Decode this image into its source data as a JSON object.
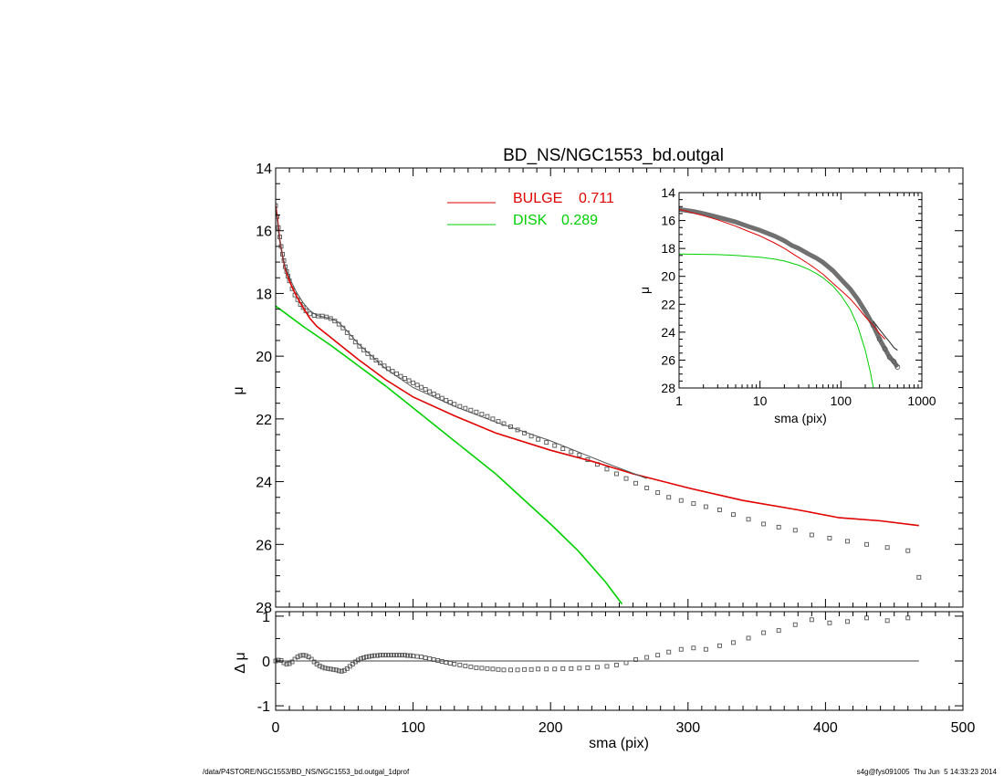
{
  "chart_data": [
    {
      "type": "line",
      "panel": "main",
      "title": "BD_NS/NGC1553_bd.outgal",
      "xlabel": "",
      "ylabel": "μ",
      "xlim": [
        0,
        500
      ],
      "ylim": [
        28,
        14
      ],
      "y_reversed": true,
      "y_ticks": [
        "14",
        "16",
        "18",
        "20",
        "22",
        "24",
        "26",
        "28"
      ],
      "legend": {
        "placement": "top-center",
        "entries": [
          {
            "label": "BULGE",
            "value": "0.711",
            "color": "#e00000"
          },
          {
            "label": "DISK",
            "value": "0.289",
            "color": "#00d000"
          }
        ]
      },
      "series": [
        {
          "name": "BULGE",
          "color": "#e00000",
          "x": [
            0,
            1,
            2,
            3,
            5,
            7,
            10,
            13,
            16,
            20,
            25,
            30,
            40,
            50,
            60,
            80,
            100,
            130,
            160,
            200,
            230,
            260,
            300,
            340,
            380,
            410,
            440,
            468
          ],
          "y": [
            15.2,
            15.5,
            15.9,
            16.3,
            16.8,
            17.2,
            17.6,
            17.9,
            18.15,
            18.45,
            18.8,
            19.05,
            19.4,
            19.75,
            20.1,
            20.75,
            21.3,
            21.9,
            22.45,
            23.0,
            23.35,
            23.75,
            24.2,
            24.6,
            24.9,
            25.15,
            25.25,
            25.4
          ]
        },
        {
          "name": "DISK",
          "color": "#00d000",
          "x": [
            0,
            20,
            40,
            60,
            80,
            100,
            120,
            140,
            160,
            180,
            200,
            220,
            240,
            252
          ],
          "y": [
            18.4,
            19.05,
            19.65,
            20.3,
            20.95,
            21.65,
            22.35,
            23.05,
            23.75,
            24.55,
            25.35,
            26.2,
            27.2,
            27.9
          ]
        },
        {
          "name": "model",
          "color": "#555555",
          "x": [
            0,
            1,
            2,
            3,
            5,
            7,
            10,
            15,
            20,
            25,
            30,
            35,
            40,
            45,
            50,
            60,
            80,
            100,
            130,
            160,
            200,
            240,
            270
          ],
          "y": [
            15.2,
            15.6,
            16.0,
            16.3,
            16.8,
            17.15,
            17.5,
            17.95,
            18.3,
            18.55,
            18.7,
            18.75,
            18.8,
            18.9,
            19.1,
            19.6,
            20.4,
            21.0,
            21.6,
            22.1,
            22.7,
            23.4,
            23.9
          ]
        }
      ],
      "observed_points": {
        "x": [
          0,
          1,
          2,
          3,
          4,
          5,
          6,
          7,
          8,
          9,
          10,
          12,
          14,
          16,
          18,
          20,
          22,
          25,
          28,
          31,
          34,
          37,
          40,
          43,
          46,
          49,
          52,
          55,
          58,
          61,
          64,
          67,
          70,
          73,
          76,
          79,
          82,
          85,
          88,
          91,
          94,
          97,
          100,
          103,
          106,
          109,
          112,
          115,
          118,
          121,
          124,
          127,
          130,
          134,
          138,
          142,
          146,
          150,
          154,
          158,
          162,
          166,
          171,
          176,
          181,
          186,
          191,
          197,
          203,
          209,
          215,
          221,
          227,
          234,
          241,
          248,
          255,
          262,
          270,
          278,
          286,
          295,
          304,
          313,
          323,
          333,
          344,
          355,
          366,
          378,
          390,
          403,
          416,
          430,
          445,
          460,
          468
        ],
        "y": [
          15.2,
          15.55,
          15.9,
          16.2,
          16.5,
          16.75,
          16.95,
          17.15,
          17.3,
          17.45,
          17.6,
          17.85,
          18.05,
          18.2,
          18.35,
          18.45,
          18.55,
          18.65,
          18.7,
          18.72,
          18.72,
          18.75,
          18.8,
          18.88,
          18.98,
          19.1,
          19.25,
          19.4,
          19.55,
          19.68,
          19.8,
          19.92,
          20.03,
          20.13,
          20.22,
          20.31,
          20.4,
          20.48,
          20.56,
          20.64,
          20.71,
          20.78,
          20.85,
          20.92,
          20.99,
          21.06,
          21.13,
          21.2,
          21.27,
          21.34,
          21.41,
          21.47,
          21.53,
          21.6,
          21.66,
          21.72,
          21.78,
          21.85,
          21.92,
          22.0,
          22.08,
          22.15,
          22.25,
          22.35,
          22.45,
          22.55,
          22.65,
          22.75,
          22.85,
          22.95,
          23.05,
          23.15,
          23.3,
          23.45,
          23.6,
          23.75,
          23.9,
          24.05,
          24.2,
          24.35,
          24.5,
          24.6,
          24.7,
          24.8,
          24.9,
          25.05,
          25.2,
          25.35,
          25.45,
          25.55,
          25.7,
          25.8,
          25.9,
          26.0,
          26.1,
          26.2,
          27.05
        ]
      }
    },
    {
      "type": "line",
      "panel": "inset",
      "xlabel": "sma (pix)",
      "ylabel": "μ",
      "x_scale": "log",
      "xlim": [
        1,
        1000
      ],
      "ylim": [
        28,
        14
      ],
      "y_reversed": true,
      "x_ticks": [
        "1",
        "10",
        "100",
        "1000"
      ],
      "y_ticks": [
        "14",
        "16",
        "18",
        "20",
        "22",
        "24",
        "26",
        "28"
      ],
      "series": [
        {
          "name": "observed",
          "color": "#444444",
          "x": [
            1,
            1.5,
            2,
            3,
            5,
            7,
            10,
            15,
            20,
            25,
            30,
            40,
            50,
            60,
            80,
            100,
            130,
            160,
            200,
            250,
            300,
            350,
            400,
            450,
            500
          ],
          "y": [
            15.2,
            15.35,
            15.5,
            15.75,
            16.1,
            16.4,
            16.7,
            17.1,
            17.45,
            17.8,
            18.0,
            18.4,
            18.7,
            19.0,
            19.6,
            20.2,
            20.9,
            21.6,
            22.5,
            23.5,
            24.5,
            25.2,
            25.8,
            26.1,
            26.5
          ]
        },
        {
          "name": "BULGE",
          "color": "#e00000",
          "x": [
            1,
            1.5,
            2,
            3,
            5,
            7,
            10,
            15,
            20,
            30,
            40,
            50,
            60,
            80,
            100,
            130,
            160,
            200,
            250,
            300,
            350
          ],
          "y": [
            15.2,
            15.45,
            15.65,
            15.95,
            16.4,
            16.75,
            17.1,
            17.6,
            18.0,
            18.65,
            19.1,
            19.5,
            19.85,
            20.5,
            21.0,
            21.6,
            22.2,
            22.9,
            23.5,
            24.1,
            24.5
          ]
        },
        {
          "name": "DISK",
          "color": "#00d000",
          "x": [
            1,
            2,
            3,
            5,
            7,
            10,
            15,
            20,
            30,
            40,
            50,
            60,
            80,
            100,
            130,
            160,
            200,
            230,
            252
          ],
          "y": [
            18.4,
            18.42,
            18.44,
            18.5,
            18.56,
            18.63,
            18.76,
            18.9,
            19.2,
            19.5,
            19.8,
            20.1,
            20.7,
            21.35,
            22.35,
            23.5,
            25.3,
            26.8,
            28.0
          ]
        },
        {
          "name": "model",
          "color": "#222222",
          "x": [
            250,
            300,
            350,
            400,
            450,
            500
          ],
          "y": [
            23.2,
            23.8,
            24.3,
            24.7,
            25.1,
            25.3
          ]
        }
      ]
    },
    {
      "type": "scatter",
      "panel": "residual",
      "xlabel": "sma (pix)",
      "ylabel": "Δ μ",
      "xlim": [
        0,
        500
      ],
      "ylim": [
        -1.1,
        1.1
      ],
      "x_ticks": [
        "0",
        "100",
        "200",
        "300",
        "400",
        "500"
      ],
      "y_ticks": [
        "-1",
        "0",
        "1"
      ],
      "zero_line": {
        "x": [
          0,
          468
        ],
        "y": 0
      },
      "points": {
        "x": [
          0,
          2,
          4,
          6,
          8,
          10,
          12,
          14,
          16,
          18,
          20,
          22,
          24,
          26,
          28,
          30,
          32,
          34,
          36,
          38,
          40,
          42,
          44,
          46,
          48,
          50,
          52,
          54,
          56,
          58,
          60,
          62,
          64,
          66,
          68,
          70,
          72,
          74,
          76,
          78,
          80,
          82,
          84,
          86,
          88,
          90,
          92,
          94,
          96,
          98,
          100,
          103,
          106,
          109,
          112,
          115,
          118,
          121,
          124,
          127,
          130,
          134,
          138,
          142,
          146,
          150,
          154,
          158,
          162,
          166,
          171,
          176,
          181,
          186,
          191,
          197,
          203,
          209,
          215,
          221,
          227,
          234,
          241,
          248,
          255,
          262,
          270,
          278,
          286,
          295,
          304,
          313,
          323,
          333,
          344,
          355,
          366,
          378,
          390,
          403,
          416,
          430,
          445,
          460
        ],
        "y": [
          0.0,
          0.02,
          0.01,
          -0.04,
          -0.07,
          -0.06,
          -0.02,
          0.04,
          0.09,
          0.12,
          0.13,
          0.12,
          0.09,
          0.04,
          -0.02,
          -0.07,
          -0.11,
          -0.14,
          -0.16,
          -0.17,
          -0.18,
          -0.19,
          -0.2,
          -0.22,
          -0.23,
          -0.21,
          -0.17,
          -0.12,
          -0.07,
          -0.02,
          0.02,
          0.05,
          0.07,
          0.09,
          0.1,
          0.11,
          0.12,
          0.12,
          0.13,
          0.13,
          0.13,
          0.13,
          0.13,
          0.13,
          0.13,
          0.13,
          0.13,
          0.13,
          0.12,
          0.12,
          0.11,
          0.1,
          0.09,
          0.07,
          0.05,
          0.03,
          0.01,
          -0.01,
          -0.03,
          -0.05,
          -0.07,
          -0.09,
          -0.11,
          -0.13,
          -0.15,
          -0.16,
          -0.17,
          -0.18,
          -0.19,
          -0.2,
          -0.2,
          -0.2,
          -0.19,
          -0.19,
          -0.18,
          -0.18,
          -0.18,
          -0.17,
          -0.17,
          -0.16,
          -0.15,
          -0.14,
          -0.12,
          -0.09,
          -0.04,
          0.03,
          0.08,
          0.13,
          0.2,
          0.26,
          0.29,
          0.26,
          0.34,
          0.41,
          0.51,
          0.63,
          0.68,
          0.81,
          0.92,
          0.85,
          0.88,
          0.96,
          0.9,
          0.96
        ]
      }
    }
  ],
  "footer": {
    "left": "/data/P4STORE/NGC1553/BD_NS/NGC1553_bd.outgal_1dprof",
    "right": "s4g@fys091005  Thu Jun  5 14:33:23 2014"
  }
}
